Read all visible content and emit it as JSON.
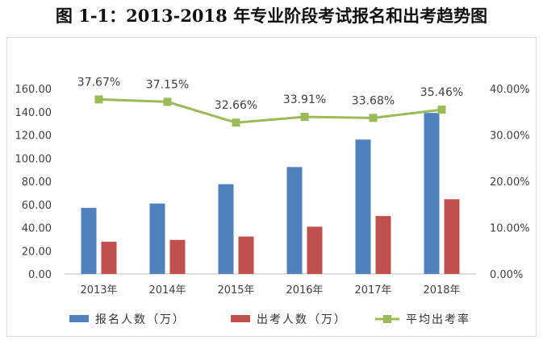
{
  "chart_data": {
    "type": "bar",
    "title": "图 1-1：2013-2018 年专业阶段考试报名和出考趋势图",
    "categories": [
      "2013年",
      "2014年",
      "2015年",
      "2016年",
      "2017年",
      "2018年"
    ],
    "series": [
      {
        "name": "报名人数（万）",
        "type": "bar",
        "axis": "left",
        "color": "#4f81bd",
        "values": [
          57.0,
          60.8,
          77.5,
          92.3,
          116.0,
          139.0
        ]
      },
      {
        "name": "出考人数（万）",
        "type": "bar",
        "axis": "left",
        "color": "#c0504d",
        "values": [
          27.8,
          29.4,
          32.3,
          40.8,
          50.0,
          64.5
        ]
      },
      {
        "name": "平均出考率",
        "type": "line",
        "axis": "right",
        "color": "#9bbb59",
        "values": [
          37.67,
          37.15,
          32.66,
          33.91,
          33.68,
          35.46
        ]
      }
    ],
    "data_labels": [
      "37.67%",
      "37.15%",
      "32.66%",
      "33.91%",
      "33.68%",
      "35.46%"
    ],
    "left_axis": {
      "ylim": [
        0,
        160
      ],
      "ticks": [
        "0.00",
        "20.00",
        "40.00",
        "60.00",
        "80.00",
        "100.00",
        "120.00",
        "140.00",
        "160.00"
      ]
    },
    "right_axis": {
      "ylim": [
        0,
        40
      ],
      "ticks": [
        "0.00%",
        "10.00%",
        "20.00%",
        "30.00%",
        "40.00%"
      ]
    },
    "grid": false,
    "legend_position": "bottom"
  }
}
